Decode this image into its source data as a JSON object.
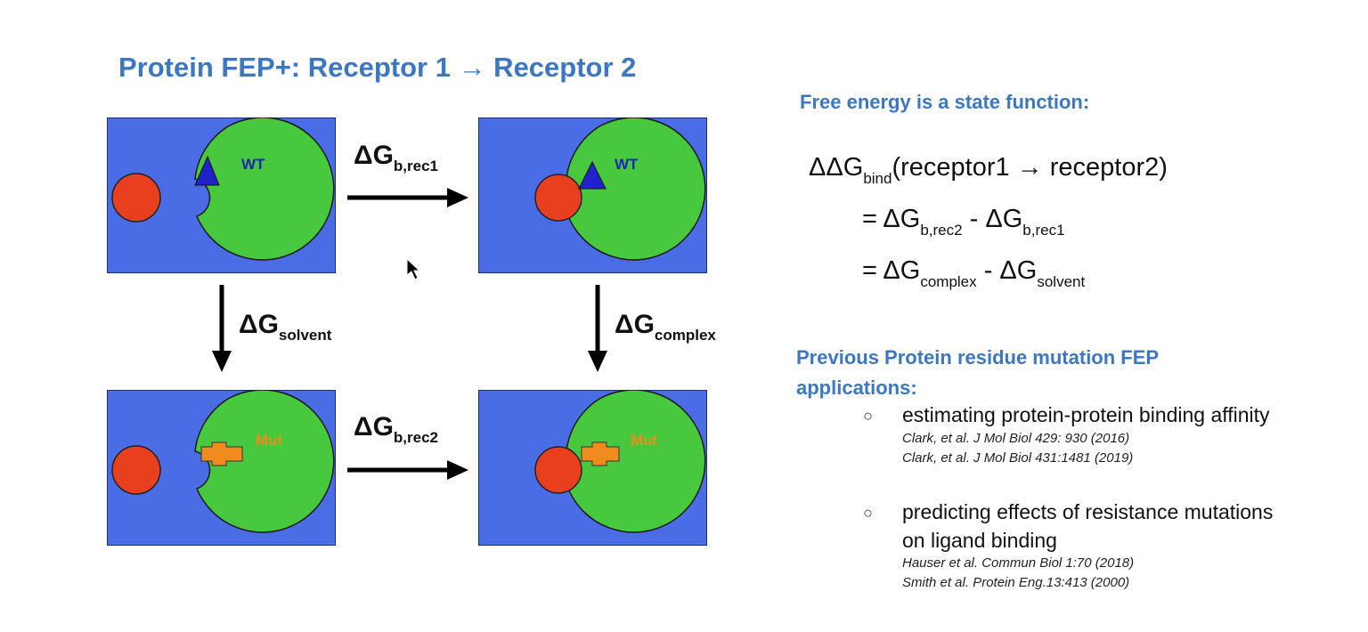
{
  "slide": {
    "title": "Protein FEP+: Receptor 1 → Receptor 2"
  },
  "diagram": {
    "panel_labels": {
      "wild_type": "WT",
      "mutant": "Mut"
    },
    "delta_g": {
      "symbol": "ΔG",
      "rec1_sub": "b,rec1",
      "rec2_sub": "b,rec2",
      "solvent_sub": "solvent",
      "complex_sub": "complex"
    },
    "colors": {
      "background": "#4a6de5",
      "receptor": "#47c83e",
      "ligand": "#e8401f",
      "wt_residue": "#2222cc",
      "mut_residue": "#f08c1e",
      "mut_text": "#f08c1e",
      "wt_text": "#1a2aa8"
    }
  },
  "right": {
    "heading": "Free energy is a state function:",
    "eq1": {
      "lhs": "ΔΔG",
      "lhs_sub": "bind",
      "rhs": "(receptor1 → receptor2)"
    },
    "eq2": {
      "prefix": "= ΔG",
      "sub1": "b,rec2",
      "mid": " - ΔG",
      "sub2": "b,rec1"
    },
    "eq3": {
      "prefix": "= ΔG",
      "sub1": "complex",
      "mid": " - ΔG",
      "sub2": "solvent"
    },
    "prev_heading_line1": "Previous Protein residue mutation FEP",
    "prev_heading_line2": "applications:",
    "bullet_marker": "○",
    "bullets": [
      {
        "text": "estimating protein-protein binding affinity",
        "refs": [
          "Clark, et al. J Mol Biol 429: 930 (2016)",
          "Clark, et al. J Mol Biol 431:1481  (2019)"
        ]
      },
      {
        "text_line1": "predicting effects of resistance mutations",
        "text_line2": "on ligand binding",
        "refs": [
          "Hauser et al. Commun Biol 1:70 (2018)",
          "Smith et al. Protein Eng.13:413 (2000)"
        ]
      }
    ]
  }
}
